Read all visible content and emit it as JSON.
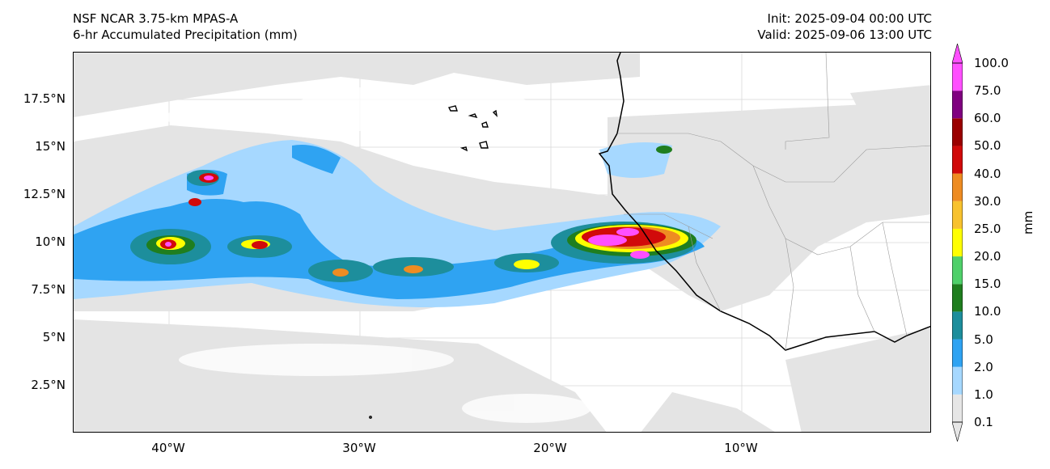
{
  "header": {
    "model": "NSF NCAR 3.75-km MPAS-A",
    "field": "6-hr Accumulated Precipitation (mm)",
    "init": "Init: 2025-09-04 00:00 UTC",
    "valid": "Valid: 2025-09-06 13:00 UTC"
  },
  "map": {
    "lat_ticks": [
      "17.5°N",
      "15°N",
      "12.5°N",
      "10°N",
      "7.5°N",
      "5°N",
      "2.5°N"
    ],
    "lon_ticks": [
      "40°W",
      "30°W",
      "20°W",
      "10°W"
    ],
    "land_fill": "#e0e0e0",
    "coastline_color": "#000000"
  },
  "colorbar": {
    "units": "mm",
    "levels": [
      "0.1",
      "1.0",
      "2.0",
      "5.0",
      "10.0",
      "15.0",
      "20.0",
      "25.0",
      "30.0",
      "40.0",
      "50.0",
      "60.0",
      "75.0",
      "100.0"
    ],
    "colors": [
      "#e6e6e6",
      "#a6d8ff",
      "#2fa3f2",
      "#1d8e9c",
      "#1f7e1f",
      "#4fd06a",
      "#ffff00",
      "#f8c22e",
      "#ee8c22",
      "#d10a0a",
      "#9b0000",
      "#800080",
      "#ff4fff"
    ]
  }
}
